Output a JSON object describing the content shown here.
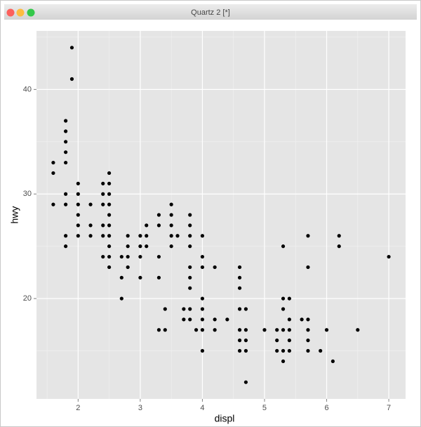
{
  "window": {
    "title": "Quartz 2 [*]"
  },
  "chart_data": {
    "type": "scatter",
    "xlabel": "displ",
    "ylabel": "hwy",
    "x": [
      1.6,
      1.6,
      1.6,
      1.8,
      1.8,
      1.8,
      1.8,
      1.8,
      1.8,
      1.8,
      1.8,
      1.8,
      1.9,
      1.9,
      2.0,
      2.0,
      2.0,
      2.0,
      2.0,
      2.0,
      2.2,
      2.2,
      2.2,
      2.4,
      2.4,
      2.4,
      2.4,
      2.4,
      2.4,
      2.5,
      2.5,
      2.5,
      2.5,
      2.5,
      2.5,
      2.5,
      2.5,
      2.5,
      2.5,
      2.7,
      2.7,
      2.7,
      2.8,
      2.8,
      2.8,
      2.8,
      3.0,
      3.0,
      3.0,
      3.0,
      3.1,
      3.1,
      3.1,
      3.3,
      3.3,
      3.3,
      3.3,
      3.3,
      3.4,
      3.4,
      3.5,
      3.5,
      3.5,
      3.5,
      3.5,
      3.6,
      3.7,
      3.7,
      3.8,
      3.8,
      3.8,
      3.8,
      3.8,
      3.8,
      3.8,
      3.8,
      3.8,
      3.9,
      4.0,
      4.0,
      4.0,
      4.0,
      4.0,
      4.0,
      4.0,
      4.0,
      4.2,
      4.2,
      4.2,
      4.4,
      4.6,
      4.6,
      4.6,
      4.6,
      4.6,
      4.6,
      4.6,
      4.7,
      4.7,
      4.7,
      4.7,
      4.7,
      5.0,
      5.2,
      5.2,
      5.2,
      5.3,
      5.3,
      5.3,
      5.3,
      5.3,
      5.3,
      5.4,
      5.4,
      5.4,
      5.4,
      5.4,
      5.6,
      5.7,
      5.7,
      5.7,
      5.7,
      5.7,
      5.7,
      5.9,
      6.0,
      6.1,
      6.2,
      6.2,
      6.5,
      7.0
    ],
    "values": [
      33,
      32,
      29,
      37,
      36,
      35,
      34,
      33,
      30,
      29,
      26,
      25,
      44,
      41,
      31,
      30,
      29,
      28,
      27,
      26,
      29,
      27,
      26,
      31,
      30,
      29,
      27,
      26,
      24,
      32,
      31,
      30,
      29,
      28,
      27,
      26,
      25,
      24,
      23,
      24,
      22,
      20,
      26,
      25,
      24,
      23,
      26,
      25,
      24,
      22,
      27,
      26,
      25,
      28,
      27,
      24,
      22,
      17,
      19,
      17,
      29,
      28,
      27,
      26,
      25,
      26,
      19,
      18,
      28,
      27,
      26,
      25,
      23,
      22,
      21,
      19,
      18,
      17,
      26,
      24,
      23,
      20,
      19,
      18,
      17,
      15,
      23,
      18,
      17,
      18,
      23,
      22,
      21,
      19,
      17,
      16,
      15,
      19,
      17,
      16,
      15,
      12,
      17,
      17,
      16,
      15,
      25,
      20,
      19,
      17,
      15,
      14,
      20,
      18,
      17,
      16,
      15,
      18,
      26,
      23,
      18,
      17,
      16,
      15,
      15,
      17,
      14,
      26,
      25,
      17,
      24
    ],
    "color": "#000000",
    "xlim": [
      1.33,
      7.27
    ],
    "ylim": [
      10.4,
      45.6
    ],
    "xticks": [
      2,
      3,
      4,
      5,
      6,
      7
    ],
    "yticks": [
      20,
      30,
      40
    ],
    "x_minor_ticks": [
      1.5,
      2.5,
      3.5,
      4.5,
      5.5,
      6.5
    ],
    "y_minor_ticks": [
      15,
      25,
      35,
      45
    ],
    "grid": true
  }
}
